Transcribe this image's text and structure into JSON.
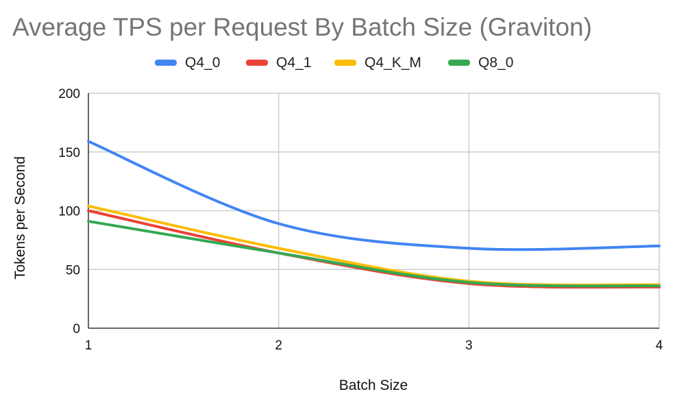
{
  "chart_data": {
    "type": "line",
    "title": "Average TPS per Request By Batch Size (Graviton)",
    "xlabel": "Batch Size",
    "ylabel": "Tokens per Second",
    "x": [
      1,
      2,
      3,
      4
    ],
    "xlim": [
      1,
      4
    ],
    "ylim": [
      0,
      200
    ],
    "yticks": [
      0,
      50,
      100,
      150,
      200
    ],
    "legend_position": "top",
    "grid": true,
    "series": [
      {
        "name": "Q4_0",
        "color": "#4285f4",
        "values": [
          159,
          89,
          68,
          70
        ]
      },
      {
        "name": "Q4_1",
        "color": "#ea4335",
        "values": [
          100,
          64,
          38,
          35
        ]
      },
      {
        "name": "Q4_K_M",
        "color": "#fbbc04",
        "values": [
          104,
          68,
          40,
          37
        ]
      },
      {
        "name": "Q8_0",
        "color": "#34a853",
        "values": [
          91,
          64,
          39,
          36
        ]
      }
    ]
  }
}
